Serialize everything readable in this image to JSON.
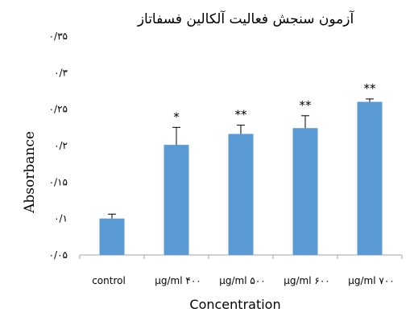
{
  "chart_data": {
    "type": "bar",
    "title": "آزمون سنجش فعالیت آلکالین فسفاتاز",
    "xlabel": "Concentration",
    "ylabel": "Absorbance",
    "categories": [
      "control",
      "μg/ml ۴۰۰",
      "μg/ml ۵۰۰",
      "μg/ml ۶۰۰",
      "μg/ml ۷۰۰"
    ],
    "values": [
      0.1,
      0.201,
      0.216,
      0.224,
      0.26
    ],
    "error": [
      0.006,
      0.024,
      0.012,
      0.017,
      0.004
    ],
    "significance": [
      "",
      "*",
      "**",
      "**",
      "**"
    ],
    "ylim": [
      0.05,
      0.35
    ],
    "yticks": [
      0.05,
      0.1,
      0.15,
      0.2,
      0.25,
      0.3,
      0.35
    ],
    "ytick_labels": [
      "۰/۰۵",
      "۰/۱",
      "۰/۱۵",
      "۰/۲",
      "۰/۲۵",
      "۰/۳",
      "۰/۳۵"
    ],
    "bar_color": "#5B9BD5",
    "grid": false,
    "legend": "none"
  }
}
